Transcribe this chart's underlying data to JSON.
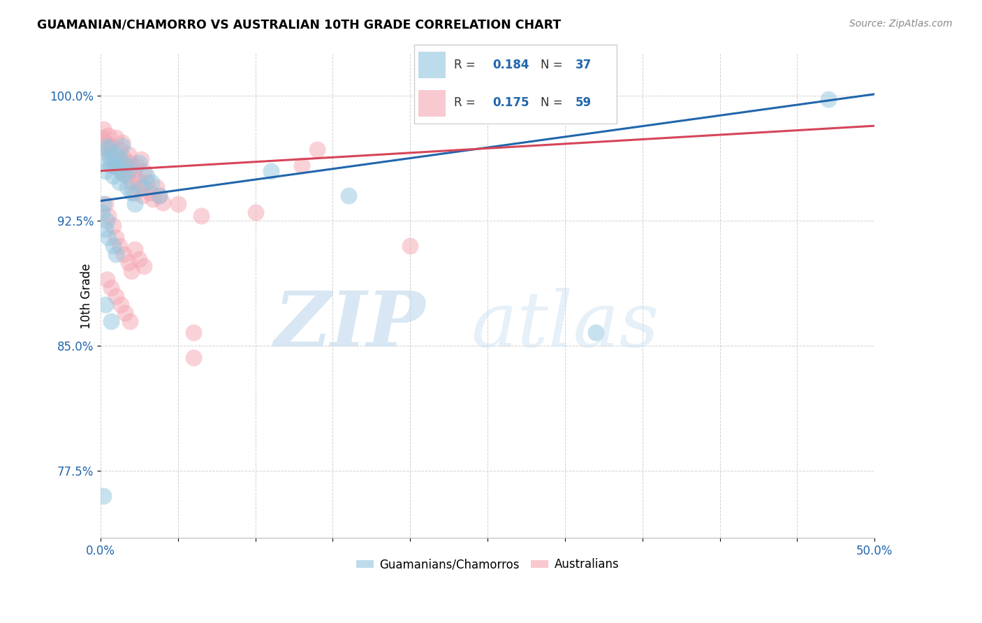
{
  "title": "GUAMANIAN/CHAMORRO VS AUSTRALIAN 10TH GRADE CORRELATION CHART",
  "source": "Source: ZipAtlas.com",
  "ylabel": "10th Grade",
  "y_ticks": [
    0.775,
    0.85,
    0.925,
    1.0
  ],
  "y_tick_labels": [
    "77.5%",
    "85.0%",
    "92.5%",
    "100.0%"
  ],
  "x_lim": [
    0.0,
    0.5
  ],
  "y_lim": [
    0.735,
    1.025
  ],
  "legend_label_blue": "Guamanians/Chamorros",
  "legend_label_pink": "Australians",
  "blue_color": "#92c5de",
  "pink_color": "#f4a6b2",
  "trend_blue": "#2166ac",
  "trend_pink": "#d6455a",
  "blue_trend_x": [
    0.0,
    0.5
  ],
  "blue_trend_y": [
    0.937,
    1.001
  ],
  "pink_trend_x": [
    0.0,
    0.5
  ],
  "pink_trend_y": [
    0.955,
    0.982
  ],
  "blue_points_x": [
    0.002,
    0.003,
    0.004,
    0.005,
    0.006,
    0.007,
    0.008,
    0.009,
    0.01,
    0.011,
    0.012,
    0.013,
    0.014,
    0.015,
    0.016,
    0.017,
    0.018,
    0.02,
    0.022,
    0.025,
    0.027,
    0.03,
    0.033,
    0.038,
    0.003,
    0.005,
    0.008,
    0.01,
    0.003,
    0.007,
    0.001,
    0.004,
    0.002,
    0.11,
    0.16,
    0.47,
    0.002,
    0.32
  ],
  "blue_points_y": [
    0.961,
    0.955,
    0.97,
    0.968,
    0.963,
    0.958,
    0.952,
    0.96,
    0.965,
    0.957,
    0.948,
    0.962,
    0.97,
    0.953,
    0.959,
    0.945,
    0.955,
    0.942,
    0.935,
    0.96,
    0.945,
    0.952,
    0.948,
    0.94,
    0.92,
    0.915,
    0.91,
    0.905,
    0.875,
    0.865,
    0.93,
    0.925,
    0.935,
    0.955,
    0.94,
    0.998,
    0.76,
    0.858
  ],
  "pink_points_x": [
    0.001,
    0.002,
    0.003,
    0.004,
    0.005,
    0.006,
    0.007,
    0.008,
    0.009,
    0.01,
    0.011,
    0.012,
    0.013,
    0.014,
    0.015,
    0.016,
    0.017,
    0.018,
    0.019,
    0.02,
    0.021,
    0.022,
    0.023,
    0.024,
    0.025,
    0.026,
    0.027,
    0.028,
    0.03,
    0.032,
    0.034,
    0.036,
    0.038,
    0.04,
    0.003,
    0.005,
    0.008,
    0.01,
    0.012,
    0.015,
    0.018,
    0.02,
    0.022,
    0.025,
    0.028,
    0.004,
    0.007,
    0.01,
    0.013,
    0.016,
    0.019,
    0.05,
    0.065,
    0.1,
    0.13,
    0.14,
    0.06,
    0.2,
    0.06
  ],
  "pink_points_y": [
    0.975,
    0.98,
    0.972,
    0.968,
    0.976,
    0.965,
    0.97,
    0.962,
    0.958,
    0.975,
    0.96,
    0.968,
    0.955,
    0.972,
    0.963,
    0.958,
    0.952,
    0.965,
    0.96,
    0.948,
    0.955,
    0.942,
    0.958,
    0.95,
    0.945,
    0.962,
    0.94,
    0.955,
    0.948,
    0.942,
    0.938,
    0.945,
    0.94,
    0.936,
    0.935,
    0.928,
    0.922,
    0.915,
    0.91,
    0.905,
    0.9,
    0.895,
    0.908,
    0.902,
    0.898,
    0.89,
    0.885,
    0.88,
    0.875,
    0.87,
    0.865,
    0.935,
    0.928,
    0.93,
    0.958,
    0.968,
    0.858,
    0.91,
    0.843
  ]
}
